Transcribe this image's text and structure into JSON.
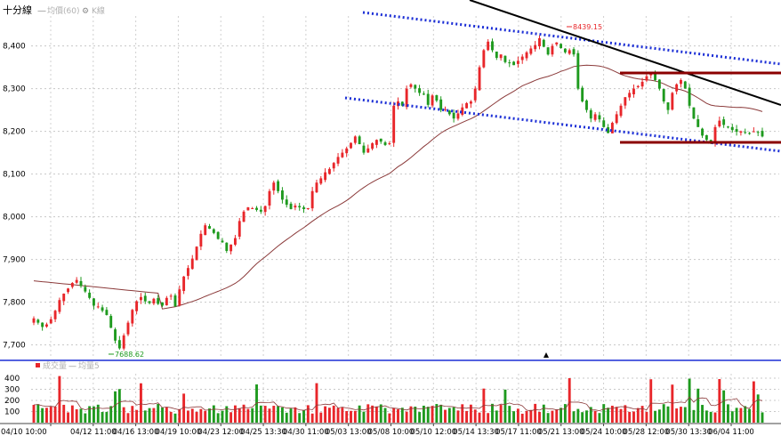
{
  "header": {
    "title": "十分線",
    "legend": [
      {
        "label": "均價(60)",
        "color": "#b0b0b0"
      },
      {
        "label": "K線",
        "color": "#b0b0b0"
      }
    ]
  },
  "volume_header": {
    "legend": [
      {
        "label": "成交量",
        "color": "#e8262a"
      },
      {
        "label": "均量5",
        "color": "#b0b0b0"
      }
    ]
  },
  "colors": {
    "up": "#e8262a",
    "down": "#1e9a1e",
    "ma": "#8b3a3a",
    "trend_blue": "#1c2fd6",
    "trend_black": "#000000",
    "support": "#8b0000",
    "separator": "#1c2fd6"
  },
  "chart_data": [
    {
      "type": "candlestick",
      "y_ticks": [
        7700,
        7800,
        7900,
        8000,
        8100,
        8200,
        8300,
        8400
      ],
      "y_tick_labels": [
        "7,700",
        "7,800",
        "7,900",
        "8,000",
        "8,100",
        "8,200",
        "8,300",
        "8,400"
      ],
      "ylim": [
        7670,
        8470
      ],
      "x_tick_labels": [
        "04/10 10:00",
        "04/12 11:00",
        "04/16 13:00",
        "04/19 10:00",
        "04/23 12:00",
        "04/25 13:30",
        "04/30 11:00",
        "05/03 13:00",
        "05/08 10:00",
        "05/10 12:00",
        "05/14 13:30",
        "05/17 11:00",
        "05/21 13:00",
        "05/24 10:00",
        "05/28 12:00",
        "05/30 13:30",
        "06/04 11:00"
      ],
      "annotations": [
        {
          "text": "8439.15",
          "kind": "high"
        },
        {
          "text": "7688.62",
          "kind": "low"
        }
      ],
      "closes": [
        7762,
        7752,
        7742,
        7748,
        7760,
        7780,
        7805,
        7820,
        7832,
        7845,
        7852,
        7838,
        7825,
        7810,
        7792,
        7790,
        7780,
        7770,
        7740,
        7710,
        7692,
        7722,
        7752,
        7782,
        7802,
        7812,
        7802,
        7798,
        7808,
        7796,
        7792,
        7810,
        7815,
        7790,
        7830,
        7860,
        7880,
        7902,
        7930,
        7960,
        7980,
        7972,
        7962,
        7948,
        7940,
        7920,
        7935,
        7950,
        7990,
        8012,
        8022,
        8020,
        8016,
        8012,
        8025,
        8060,
        8080,
        8060,
        8040,
        8028,
        8018,
        8026,
        8022,
        8018,
        8020,
        8060,
        8080,
        8090,
        8104,
        8112,
        8126,
        8140,
        8150,
        8160,
        8173,
        8188,
        8170,
        8150,
        8160,
        8172,
        8180,
        8176,
        8168,
        8172,
        8260,
        8270,
        8260,
        8300,
        8310,
        8300,
        8290,
        8286,
        8262,
        8284,
        8272,
        8250,
        8252,
        8240,
        8230,
        8242,
        8256,
        8266,
        8270,
        8300,
        8350,
        8390,
        8410,
        8390,
        8372,
        8380,
        8362,
        8360,
        8355,
        8365,
        8375,
        8385,
        8394,
        8402,
        8418,
        8398,
        8380,
        8400,
        8408,
        8395,
        8385,
        8390,
        8380,
        8300,
        8270,
        8250,
        8230,
        8240,
        8228,
        8210,
        8196,
        8220,
        8240,
        8260,
        8280,
        8290,
        8300,
        8306,
        8316,
        8329,
        8336,
        8320,
        8300,
        8270,
        8250,
        8290,
        8310,
        8320,
        8300,
        8260,
        8230,
        8210,
        8190,
        8180,
        8175,
        8210,
        8225,
        8215,
        8210,
        8203,
        8199,
        8200,
        8197,
        8195,
        8200,
        8197,
        8188
      ],
      "ma_line_points": 31
    },
    {
      "type": "bar",
      "name": "成交量",
      "y_ticks": [
        100,
        200,
        300,
        400
      ],
      "y_tick_labels": [
        "100",
        "200",
        "300",
        "400"
      ],
      "ylim": [
        0,
        440
      ]
    }
  ]
}
